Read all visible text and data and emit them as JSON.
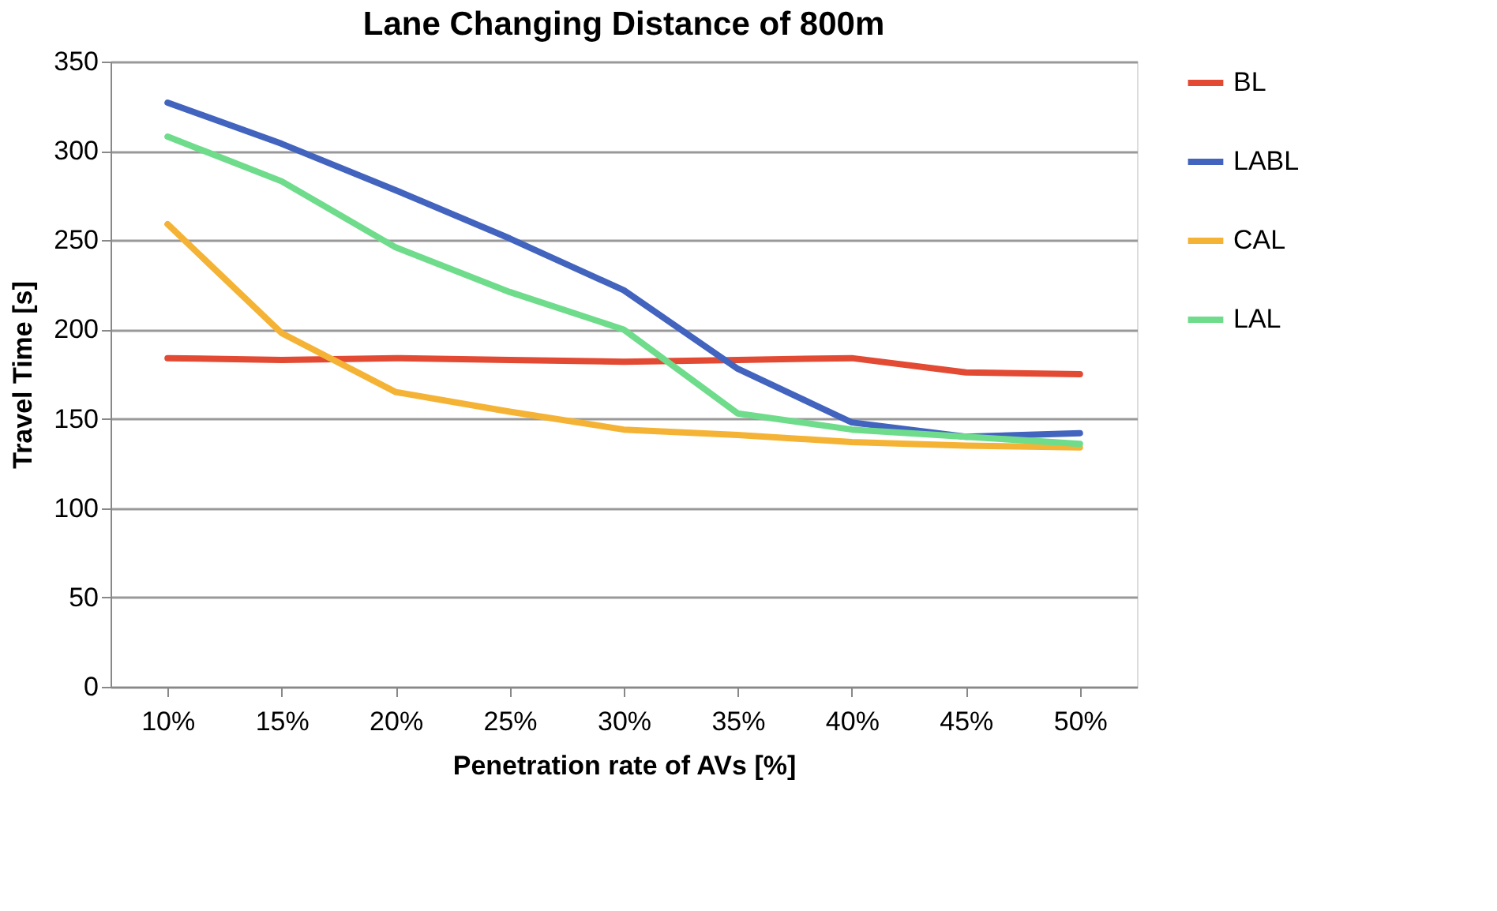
{
  "chart_data": {
    "type": "line",
    "title": "Lane Changing Distance of 800m",
    "xlabel": "Penetration rate of AVs [%]",
    "ylabel": "Travel Time [s]",
    "categories": [
      "10%",
      "15%",
      "20%",
      "25%",
      "30%",
      "35%",
      "40%",
      "45%",
      "50%"
    ],
    "series": [
      {
        "name": "BL",
        "color": "#e34a33",
        "values": [
          184,
          183,
          184,
          183,
          182,
          183,
          184,
          176,
          175
        ]
      },
      {
        "name": "LABL",
        "color": "#4264be",
        "values": [
          327,
          304,
          278,
          251,
          222,
          178,
          148,
          140,
          142
        ]
      },
      {
        "name": "CAL",
        "color": "#f5b335",
        "values": [
          259,
          198,
          165,
          154,
          144,
          141,
          137,
          135,
          134
        ]
      },
      {
        "name": "LAL",
        "color": "#6fdc8c",
        "values": [
          308,
          283,
          246,
          221,
          200,
          153,
          144,
          140,
          136
        ]
      }
    ],
    "ylim": [
      0,
      350
    ],
    "yticks": [
      0,
      50,
      100,
      150,
      200,
      250,
      300,
      350
    ],
    "grid": "y",
    "legend": "right",
    "marker": "none",
    "line_style": "solid"
  }
}
